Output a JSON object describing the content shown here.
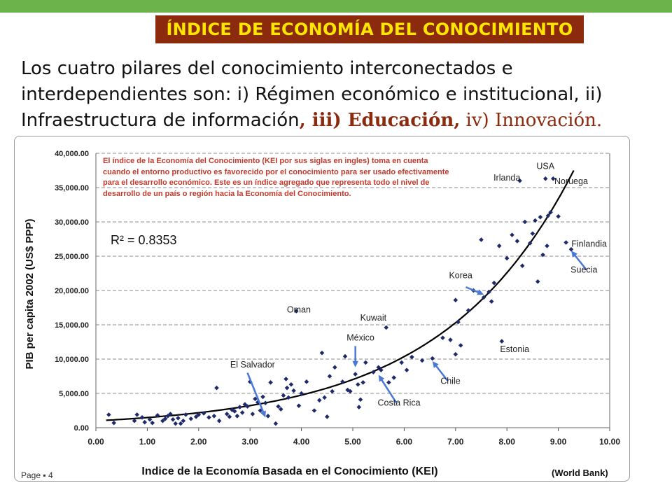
{
  "slide": {
    "title": "ÍNDICE DE ECONOMÍA DEL CONOCIMIENTO",
    "intro_a": "Los cuatro pilares del conocimiento interconectados e interdependientes son: i) Régimen económico e institucional, ii) Infraestructura de información",
    "intro_b": ", iii) Educación,",
    "intro_c": " iv) Innovación.",
    "page": "Page ▪ 4",
    "source": "(World Bank)"
  },
  "colors": {
    "accent_green": "#6bb34a",
    "title_bg": "#8b2a0c",
    "title_text": "#ffe600",
    "points": "#1f2a6b",
    "arrow": "#4a78d8",
    "note": "#c0392b"
  },
  "chart_data": {
    "type": "scatter",
    "xlabel": "Indice de la Economía Basada en el Conocimiento (KEI)",
    "ylabel": "PIB per capita 2002 (US$ PPP)",
    "xlim": [
      0,
      10
    ],
    "ylim": [
      0,
      40000
    ],
    "x_ticks": [
      "0.00",
      "1.00",
      "2.00",
      "3.00",
      "4.00",
      "5.00",
      "6.00",
      "7.00",
      "8.00",
      "9.00",
      "10.00"
    ],
    "y_ticks": [
      "0.00",
      "5,000.00",
      "10,000.00",
      "15,000.00",
      "20,000.00",
      "25,000.00",
      "30,000.00",
      "35,000.00",
      "40,000.00"
    ],
    "grid": "horizontal",
    "r2": "R² = 0.8353",
    "note": "El índice de la Economía del Conocimiento (KEI por sus siglas en ingles) toma en cuenta cuando el entorno productivo es favorecido por el conocimiento para ser usado efectivamente para el desarrollo económico. Este es un índice agregado que representa todo el nivel de desarrollo de un país o región hacia la Economía del Conocimiento.",
    "labels": [
      {
        "text": "USA",
        "x": 8.75,
        "y": 37700
      },
      {
        "text": "Irlanda",
        "x": 8.0,
        "y": 36000
      },
      {
        "text": "Noruega",
        "x": 9.25,
        "y": 35500
      },
      {
        "text": "Finlandia",
        "x": 9.6,
        "y": 26400
      },
      {
        "text": "Suecia",
        "x": 9.5,
        "y": 22600
      },
      {
        "text": "Korea",
        "x": 7.1,
        "y": 21800
      },
      {
        "text": "Oman",
        "x": 3.95,
        "y": 16800
      },
      {
        "text": "Kuwait",
        "x": 5.4,
        "y": 15600
      },
      {
        "text": "México",
        "x": 5.15,
        "y": 12700
      },
      {
        "text": "Estonia",
        "x": 8.15,
        "y": 11000
      },
      {
        "text": "El Salvador",
        "x": 3.05,
        "y": 8800
      },
      {
        "text": "Chile",
        "x": 6.9,
        "y": 6400
      },
      {
        "text": "Costa Rica",
        "x": 5.9,
        "y": 3200
      }
    ],
    "arrows": [
      {
        "from": [
          9.55,
          23000
        ],
        "to": [
          9.25,
          25800
        ]
      },
      {
        "from": [
          7.2,
          20500
        ],
        "to": [
          7.55,
          19400
        ]
      },
      {
        "from": [
          5.05,
          11900
        ],
        "to": [
          5.05,
          8800
        ]
      },
      {
        "from": [
          6.85,
          6800
        ],
        "to": [
          6.55,
          9700
        ]
      },
      {
        "from": [
          5.85,
          3600
        ],
        "to": [
          5.5,
          7700
        ]
      },
      {
        "from": [
          2.95,
          8000
        ],
        "to": [
          3.3,
          1500
        ]
      }
    ],
    "trend": {
      "a": 1000,
      "b": 0.3897
    },
    "points": [
      [
        0.25,
        1900
      ],
      [
        0.35,
        700
      ],
      [
        0.75,
        1000
      ],
      [
        0.8,
        1900
      ],
      [
        0.9,
        1500
      ],
      [
        0.95,
        800
      ],
      [
        1.05,
        1200
      ],
      [
        1.1,
        700
      ],
      [
        1.2,
        1800
      ],
      [
        1.3,
        1000
      ],
      [
        1.35,
        1300
      ],
      [
        1.4,
        1700
      ],
      [
        1.45,
        2000
      ],
      [
        1.5,
        1200
      ],
      [
        1.55,
        600
      ],
      [
        1.6,
        1400
      ],
      [
        1.65,
        600
      ],
      [
        1.7,
        1000
      ],
      [
        1.75,
        1900
      ],
      [
        1.85,
        1300
      ],
      [
        1.95,
        1600
      ],
      [
        2.0,
        1900
      ],
      [
        2.1,
        2100
      ],
      [
        2.2,
        1500
      ],
      [
        2.3,
        1700
      ],
      [
        2.35,
        5800
      ],
      [
        2.4,
        1000
      ],
      [
        2.55,
        2000
      ],
      [
        2.6,
        1600
      ],
      [
        2.65,
        2600
      ],
      [
        2.7,
        2400
      ],
      [
        2.75,
        1700
      ],
      [
        2.8,
        3000
      ],
      [
        2.85,
        2200
      ],
      [
        2.9,
        3400
      ],
      [
        2.95,
        3100
      ],
      [
        3.0,
        6700
      ],
      [
        3.05,
        2000
      ],
      [
        3.1,
        4200
      ],
      [
        3.15,
        3700
      ],
      [
        3.2,
        2500
      ],
      [
        3.25,
        4500
      ],
      [
        3.3,
        3600
      ],
      [
        3.35,
        1700
      ],
      [
        3.4,
        6600
      ],
      [
        3.5,
        600
      ],
      [
        3.55,
        3100
      ],
      [
        3.6,
        2700
      ],
      [
        3.65,
        4700
      ],
      [
        3.7,
        7100
      ],
      [
        3.72,
        5800
      ],
      [
        3.75,
        4400
      ],
      [
        3.8,
        6300
      ],
      [
        3.85,
        5400
      ],
      [
        3.9,
        17000
      ],
      [
        3.95,
        3200
      ],
      [
        4.0,
        5000
      ],
      [
        4.1,
        6700
      ],
      [
        4.25,
        2500
      ],
      [
        4.35,
        4000
      ],
      [
        4.4,
        10900
      ],
      [
        4.45,
        4400
      ],
      [
        4.5,
        1600
      ],
      [
        4.55,
        7500
      ],
      [
        4.6,
        5300
      ],
      [
        4.65,
        8800
      ],
      [
        4.8,
        6700
      ],
      [
        4.85,
        10400
      ],
      [
        4.9,
        5500
      ],
      [
        4.95,
        5300
      ],
      [
        5.05,
        7800
      ],
      [
        5.1,
        6300
      ],
      [
        5.12,
        3000
      ],
      [
        5.15,
        4100
      ],
      [
        5.2,
        6600
      ],
      [
        5.25,
        9500
      ],
      [
        5.4,
        8100
      ],
      [
        5.5,
        8800
      ],
      [
        5.55,
        8400
      ],
      [
        5.65,
        14600
      ],
      [
        5.7,
        6600
      ],
      [
        5.8,
        7300
      ],
      [
        5.95,
        9500
      ],
      [
        6.05,
        8400
      ],
      [
        6.15,
        10300
      ],
      [
        6.35,
        9800
      ],
      [
        6.55,
        10100
      ],
      [
        6.75,
        13100
      ],
      [
        6.9,
        12800
      ],
      [
        7.0,
        10700
      ],
      [
        7.0,
        18600
      ],
      [
        7.05,
        15400
      ],
      [
        7.1,
        12000
      ],
      [
        7.25,
        17100
      ],
      [
        7.35,
        20000
      ],
      [
        7.5,
        27400
      ],
      [
        7.55,
        19000
      ],
      [
        7.65,
        19800
      ],
      [
        7.7,
        18400
      ],
      [
        7.75,
        21100
      ],
      [
        7.85,
        26500
      ],
      [
        7.9,
        12600
      ],
      [
        8.0,
        24700
      ],
      [
        8.1,
        28100
      ],
      [
        8.2,
        27200
      ],
      [
        8.25,
        36000
      ],
      [
        8.3,
        23600
      ],
      [
        8.35,
        30000
      ],
      [
        8.45,
        26900
      ],
      [
        8.5,
        28300
      ],
      [
        8.55,
        30200
      ],
      [
        8.6,
        21300
      ],
      [
        8.65,
        30700
      ],
      [
        8.7,
        25200
      ],
      [
        8.75,
        36300
      ],
      [
        8.78,
        26500
      ],
      [
        8.8,
        30900
      ],
      [
        8.85,
        31400
      ],
      [
        8.9,
        36300
      ],
      [
        9.0,
        30800
      ],
      [
        9.15,
        27000
      ],
      [
        9.25,
        26000
      ]
    ]
  }
}
